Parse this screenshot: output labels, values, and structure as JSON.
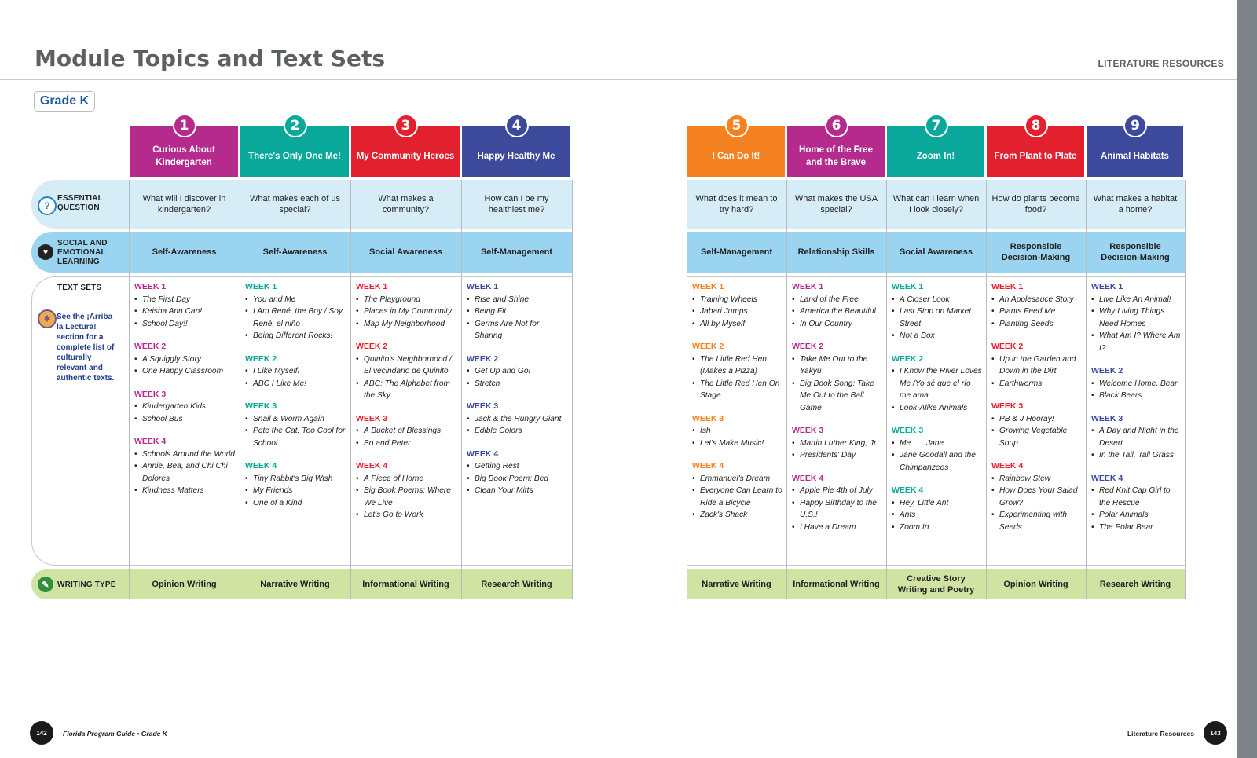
{
  "page": {
    "title": "Module Topics and Text Sets",
    "section": "LITERATURE RESOURCES",
    "grade": "Grade K"
  },
  "rows": {
    "essential_question": "ESSENTIAL QUESTION",
    "sel": "SOCIAL AND EMOTIONAL LEARNING",
    "text_sets": "TEXT SETS",
    "writing_type": "WRITING TYPE"
  },
  "sidebar_note": "See the ¡Arriba la Lectura! section for a complete list of culturally relevant and authentic texts.",
  "modules": [
    {
      "number": "1",
      "color": "#b52b8d",
      "week_color": "#b52b8d",
      "title": "Curious About Kindergarten",
      "question": "What will I discover in kindergarten?",
      "sel": "Self-Awareness",
      "writing": "Opinion Writing",
      "weeks": [
        {
          "label": "WEEK 1",
          "texts": [
            "The First Day",
            "Keisha Ann Can!",
            "School Day!!"
          ]
        },
        {
          "label": "WEEK 2",
          "texts": [
            "A Squiggly Story",
            "One Happy Classroom"
          ]
        },
        {
          "label": "WEEK 3",
          "texts": [
            "Kindergarten Kids",
            "School Bus"
          ]
        },
        {
          "label": "WEEK 4",
          "texts": [
            "Schools Around the World",
            "Annie, Bea, and Chi Chi Dolores",
            "Kindness Matters"
          ]
        }
      ]
    },
    {
      "number": "2",
      "color": "#0aa89a",
      "week_color": "#0aa89a",
      "title": "There's Only One Me!",
      "question": "What makes each of us special?",
      "sel": "Self-Awareness",
      "writing": "Narrative Writing",
      "weeks": [
        {
          "label": "WEEK 1",
          "texts": [
            "You and Me",
            "I Am René, the Boy / Soy René, el niño",
            "Being Different Rocks!"
          ]
        },
        {
          "label": "WEEK 2",
          "texts": [
            "I Like Myself!",
            "ABC I Like Me!"
          ]
        },
        {
          "label": "WEEK 3",
          "texts": [
            "Snail & Worm Again",
            "Pete the Cat: Too Cool for School"
          ]
        },
        {
          "label": "WEEK 4",
          "texts": [
            "Tiny Rabbit's Big Wish",
            "My Friends",
            "One of a Kind"
          ]
        }
      ]
    },
    {
      "number": "3",
      "color": "#e3202e",
      "week_color": "#e3202e",
      "title": "My Community Heroes",
      "question": "What makes a community?",
      "sel": "Social Awareness",
      "writing": "Informational Writing",
      "weeks": [
        {
          "label": "WEEK 1",
          "texts": [
            "The Playground",
            "Places in My Community",
            "Map My Neighborhood"
          ]
        },
        {
          "label": "WEEK 2",
          "texts": [
            "Quinito's Neighborhood / El vecindario de Quinito",
            "ABC: The Alphabet from the Sky"
          ]
        },
        {
          "label": "WEEK 3",
          "texts": [
            "A Bucket of Blessings",
            "Bo and Peter"
          ]
        },
        {
          "label": "WEEK 4",
          "texts": [
            "A Piece of Home",
            "Big Book Poems: Where We Live",
            "Let's Go to Work"
          ]
        }
      ]
    },
    {
      "number": "4",
      "color": "#3d4a9c",
      "week_color": "#3d4a9c",
      "title": "Happy Healthy Me",
      "question": "How can I be my healthiest me?",
      "sel": "Self-Management",
      "writing": "Research Writing",
      "weeks": [
        {
          "label": "WEEK 1",
          "texts": [
            "Rise and Shine",
            "Being Fit",
            "Germs Are Not for Sharing"
          ]
        },
        {
          "label": "WEEK 2",
          "texts": [
            "Get Up and Go!",
            "Stretch"
          ]
        },
        {
          "label": "WEEK 3",
          "texts": [
            "Jack & the Hungry Giant",
            "Edible Colors"
          ]
        },
        {
          "label": "WEEK 4",
          "texts": [
            "Getting Rest",
            "Big Book Poem: Bed",
            "Clean Your Mitts"
          ]
        }
      ]
    },
    {
      "number": "5",
      "color": "#f58220",
      "week_color": "#f58220",
      "title": "I Can Do It!",
      "question": "What does it mean to try hard?",
      "sel": "Self-Management",
      "writing": "Narrative Writing",
      "weeks": [
        {
          "label": "WEEK 1",
          "texts": [
            "Training Wheels",
            "Jabari Jumps",
            "All by Myself"
          ]
        },
        {
          "label": "WEEK 2",
          "texts": [
            "The Little Red Hen (Makes a Pizza)",
            "The Little Red Hen On Stage"
          ]
        },
        {
          "label": "WEEK 3",
          "texts": [
            "Ish",
            "Let's Make Music!"
          ]
        },
        {
          "label": "WEEK 4",
          "texts": [
            "Emmanuel's Dream",
            "Everyone Can Learn to Ride a Bicycle",
            "Zack's Shack"
          ]
        }
      ]
    },
    {
      "number": "6",
      "color": "#b52b8d",
      "week_color": "#b52b8d",
      "title": "Home of the Free and the Brave",
      "question": "What makes the USA special?",
      "sel": "Relationship Skills",
      "writing": "Informational Writing",
      "weeks": [
        {
          "label": "WEEK 1",
          "texts": [
            "Land of the Free",
            "America the Beautiful",
            "In Our Country"
          ]
        },
        {
          "label": "WEEK 2",
          "texts": [
            "Take Me Out to the Yakyu",
            "Big Book Song: Take Me Out to the Ball Game"
          ]
        },
        {
          "label": "WEEK 3",
          "texts": [
            "Martin Luther King, Jr.",
            "Presidents' Day"
          ]
        },
        {
          "label": "WEEK 4",
          "texts": [
            "Apple Pie 4th of July",
            "Happy Birthday to the U.S.!",
            "I Have a Dream"
          ]
        }
      ]
    },
    {
      "number": "7",
      "color": "#0aa89a",
      "week_color": "#0aa89a",
      "title": "Zoom In!",
      "question": "What can I learn when I look closely?",
      "sel": "Social Awareness",
      "writing": "Creative Story Writing and Poetry",
      "weeks": [
        {
          "label": "WEEK 1",
          "texts": [
            "A Closer Look",
            "Last Stop on Market Street",
            "Not a Box"
          ]
        },
        {
          "label": "WEEK 2",
          "texts": [
            "I Know the River Loves Me /Yo sé que el río me ama",
            "Look-Alike Animals"
          ]
        },
        {
          "label": "WEEK 3",
          "texts": [
            "Me . . . Jane",
            "Jane Goodall and the Chimpanzees"
          ]
        },
        {
          "label": "WEEK 4",
          "texts": [
            "Hey, Little Ant",
            "Ants",
            "Zoom In"
          ]
        }
      ]
    },
    {
      "number": "8",
      "color": "#e3202e",
      "week_color": "#e3202e",
      "title": "From Plant to Plate",
      "question": "How do plants become food?",
      "sel": "Responsible Decision-Making",
      "writing": "Opinion Writing",
      "weeks": [
        {
          "label": "WEEK 1",
          "texts": [
            "An Applesauce Story",
            "Plants Feed Me",
            "Planting Seeds"
          ]
        },
        {
          "label": "WEEK 2",
          "texts": [
            "Up in the Garden and Down in the Dirt",
            "Earthworms"
          ]
        },
        {
          "label": "WEEK 3",
          "texts": [
            "PB & J Hooray!",
            "Growing Vegetable Soup"
          ]
        },
        {
          "label": "WEEK 4",
          "texts": [
            "Rainbow Stew",
            "How Does Your Salad Grow?",
            "Experimenting with Seeds"
          ]
        }
      ]
    },
    {
      "number": "9",
      "color": "#3d4a9c",
      "week_color": "#3d4a9c",
      "title": "Animal Habitats",
      "question": "What makes a habitat a home?",
      "sel": "Responsible Decision-Making",
      "writing": "Research Writing",
      "weeks": [
        {
          "label": "WEEK 1",
          "texts": [
            "Live Like An Animal!",
            "Why Living Things Need Homes",
            "What Am I? Where Am I?"
          ]
        },
        {
          "label": "WEEK 2",
          "texts": [
            "Welcome Home, Bear",
            "Black Bears"
          ]
        },
        {
          "label": "WEEK 3",
          "texts": [
            "A Day and Night in the Desert",
            "In the Tall, Tall Grass"
          ]
        },
        {
          "label": "WEEK 4",
          "texts": [
            "Red Knit Cap Girl to the Rescue",
            "Polar Animals",
            "The Polar Bear"
          ]
        }
      ]
    }
  ],
  "footer": {
    "left_page": "142",
    "left_text": "Florida Program Guide • Grade K",
    "right_page": "143",
    "right_text": "Literature Resources"
  },
  "colors": {
    "eq_band": "#d6edf8",
    "sel_band": "#9bd4f0",
    "writing_band": "#d1e3a3",
    "title_gray": "#5d6063"
  }
}
